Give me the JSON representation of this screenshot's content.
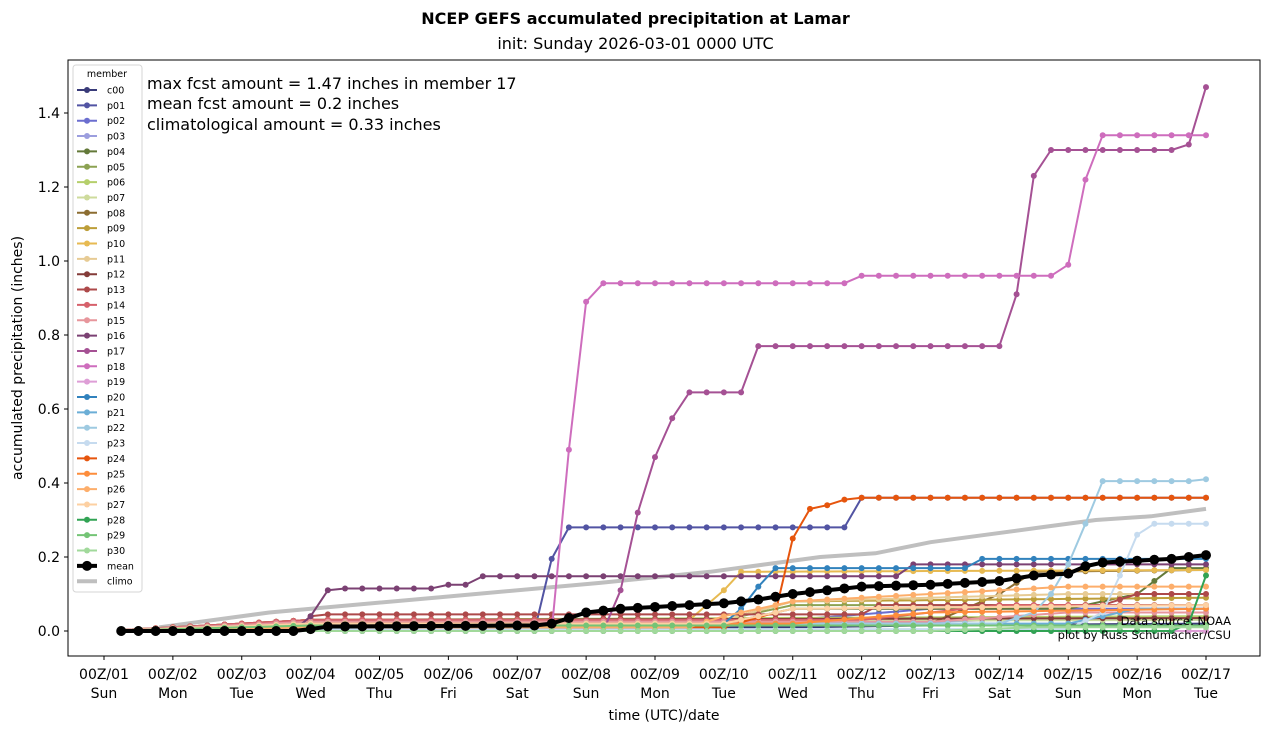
{
  "chart_data": {
    "type": "line",
    "title": "NCEP GEFS accumulated precipitation at Lamar",
    "subtitle": "init: Sunday 2026-03-01 0000 UTC",
    "xlabel": "time (UTC)/date",
    "ylabel": "accumulated precipitation (inches)",
    "ylim": [
      -0.065,
      1.52
    ],
    "xlim_hours": [
      -18,
      402
    ],
    "y_ticks": [
      "0.0",
      "0.2",
      "0.4",
      "0.6",
      "0.8",
      "1.0",
      "1.2",
      "1.4"
    ],
    "y_tick_values": [
      0,
      0.2,
      0.4,
      0.6,
      0.8,
      1.0,
      1.2,
      1.4
    ],
    "x_ticks": [
      {
        "hour": 0,
        "label1": "00Z/01",
        "label2": "Sun"
      },
      {
        "hour": 24,
        "label1": "00Z/02",
        "label2": "Mon"
      },
      {
        "hour": 48,
        "label1": "00Z/03",
        "label2": "Tue"
      },
      {
        "hour": 72,
        "label1": "00Z/04",
        "label2": "Wed"
      },
      {
        "hour": 96,
        "label1": "00Z/05",
        "label2": "Thu"
      },
      {
        "hour": 120,
        "label1": "00Z/06",
        "label2": "Fri"
      },
      {
        "hour": 144,
        "label1": "00Z/07",
        "label2": "Sat"
      },
      {
        "hour": 168,
        "label1": "00Z/08",
        "label2": "Sun"
      },
      {
        "hour": 192,
        "label1": "00Z/09",
        "label2": "Mon"
      },
      {
        "hour": 216,
        "label1": "00Z/10",
        "label2": "Tue"
      },
      {
        "hour": 240,
        "label1": "00Z/11",
        "label2": "Wed"
      },
      {
        "hour": 264,
        "label1": "00Z/12",
        "label2": "Thu"
      },
      {
        "hour": 288,
        "label1": "00Z/13",
        "label2": "Fri"
      },
      {
        "hour": 312,
        "label1": "00Z/14",
        "label2": "Sat"
      },
      {
        "hour": 336,
        "label1": "00Z/15",
        "label2": "Sun"
      },
      {
        "hour": 360,
        "label1": "00Z/16",
        "label2": "Mon"
      },
      {
        "hour": 384,
        "label1": "00Z/17",
        "label2": "Tue"
      }
    ],
    "time_step_hours": 6,
    "series_start_hour": 6,
    "annotations": [
      "max fcst amount = 1.47 inches in member 17",
      "mean fcst amount = 0.2 inches",
      "climatological amount = 0.33 inches"
    ],
    "credits": [
      "Data source: NOAA",
      "plot by Russ Schumacher/CSU"
    ],
    "legend": {
      "title": "member",
      "placement": "upper-left"
    },
    "series": [
      {
        "name": "c00",
        "color": "#393b79",
        "steps": [
          [
            0,
            0
          ],
          [
            12,
            0.005
          ],
          [
            40,
            0.01
          ],
          [
            48,
            0.015
          ],
          [
            64,
            0.02
          ]
        ]
      },
      {
        "name": "p01",
        "color": "#5254a3",
        "steps": [
          [
            0,
            0
          ],
          [
            25,
            0
          ],
          [
            26,
            0.195
          ],
          [
            27,
            0.28
          ],
          [
            43,
            0.28
          ],
          [
            44,
            0.36
          ],
          [
            64,
            0.36
          ]
        ]
      },
      {
        "name": "p02",
        "color": "#6b6ecf",
        "steps": [
          [
            0,
            0
          ],
          [
            12,
            0.03
          ],
          [
            40,
            0.03
          ],
          [
            48,
            0.06
          ],
          [
            64,
            0.06
          ]
        ]
      },
      {
        "name": "p03",
        "color": "#9c9ede",
        "steps": [
          [
            0,
            0
          ],
          [
            12,
            0.02
          ],
          [
            44,
            0.02
          ],
          [
            52,
            0.03
          ],
          [
            64,
            0.03
          ]
        ]
      },
      {
        "name": "p04",
        "color": "#637939",
        "steps": [
          [
            0,
            0
          ],
          [
            12,
            0.02
          ],
          [
            36,
            0.02
          ],
          [
            40,
            0.06
          ],
          [
            56,
            0.06
          ],
          [
            60,
            0.1
          ],
          [
            62,
            0.17
          ],
          [
            64,
            0.17
          ]
        ]
      },
      {
        "name": "p05",
        "color": "#8ca252",
        "steps": [
          [
            0,
            0
          ],
          [
            12,
            0.03
          ],
          [
            36,
            0.03
          ],
          [
            40,
            0.07
          ],
          [
            64,
            0.07
          ]
        ]
      },
      {
        "name": "p06",
        "color": "#b5cf6b",
        "steps": [
          [
            0,
            0
          ],
          [
            12,
            0.03
          ],
          [
            64,
            0.04
          ]
        ]
      },
      {
        "name": "p07",
        "color": "#cedb9c",
        "steps": [
          [
            0,
            0
          ],
          [
            12,
            0.025
          ],
          [
            64,
            0.03
          ]
        ]
      },
      {
        "name": "p08",
        "color": "#8c6d31",
        "steps": [
          [
            0,
            0
          ],
          [
            12,
            0.02
          ],
          [
            48,
            0.02
          ],
          [
            52,
            0.1
          ],
          [
            54,
            0.16
          ],
          [
            64,
            0.165
          ]
        ]
      },
      {
        "name": "p09",
        "color": "#bd9e39",
        "steps": [
          [
            0,
            0
          ],
          [
            12,
            0.03
          ],
          [
            36,
            0.03
          ],
          [
            40,
            0.08
          ],
          [
            64,
            0.09
          ]
        ]
      },
      {
        "name": "p10",
        "color": "#e7ba52",
        "steps": [
          [
            0,
            0
          ],
          [
            12,
            0.03
          ],
          [
            34,
            0.03
          ],
          [
            36,
            0.11
          ],
          [
            37,
            0.16
          ],
          [
            64,
            0.165
          ]
        ]
      },
      {
        "name": "p11",
        "color": "#e7cb94",
        "steps": [
          [
            0,
            0
          ],
          [
            12,
            0.03
          ],
          [
            36,
            0.03
          ],
          [
            40,
            0.08
          ],
          [
            48,
            0.09
          ],
          [
            56,
            0.1
          ],
          [
            64,
            0.1
          ]
        ]
      },
      {
        "name": "p12",
        "color": "#843c39",
        "steps": [
          [
            0,
            0
          ],
          [
            12,
            0.03
          ],
          [
            64,
            0.035
          ]
        ]
      },
      {
        "name": "p13",
        "color": "#ad494a",
        "steps": [
          [
            0,
            0
          ],
          [
            11,
            0
          ],
          [
            12,
            0.04
          ],
          [
            13,
            0.045
          ],
          [
            44,
            0.045
          ],
          [
            45,
            0.07
          ],
          [
            58,
            0.07
          ],
          [
            60,
            0.1
          ],
          [
            64,
            0.1
          ]
        ]
      },
      {
        "name": "p14",
        "color": "#d6616b",
        "steps": [
          [
            0,
            0
          ],
          [
            12,
            0.03
          ],
          [
            44,
            0.03
          ],
          [
            52,
            0.07
          ],
          [
            64,
            0.07
          ]
        ]
      },
      {
        "name": "p15",
        "color": "#e7969c",
        "steps": [
          [
            0,
            0
          ],
          [
            12,
            0.025
          ],
          [
            48,
            0.025
          ],
          [
            56,
            0.05
          ],
          [
            64,
            0.05
          ]
        ]
      },
      {
        "name": "p16",
        "color": "#7b4173",
        "steps": [
          [
            0,
            0
          ],
          [
            11,
            0
          ],
          [
            12,
            0.04
          ],
          [
            13,
            0.11
          ],
          [
            14,
            0.115
          ],
          [
            19,
            0.115
          ],
          [
            20,
            0.125
          ],
          [
            21,
            0.125
          ],
          [
            22,
            0.148
          ],
          [
            46,
            0.148
          ],
          [
            47,
            0.18
          ],
          [
            64,
            0.18
          ]
        ]
      },
      {
        "name": "p17",
        "color": "#a55194",
        "steps": [
          [
            0,
            0
          ],
          [
            29,
            0
          ],
          [
            30,
            0.11
          ],
          [
            31,
            0.32
          ],
          [
            32,
            0.47
          ],
          [
            33,
            0.575
          ],
          [
            34,
            0.645
          ],
          [
            37,
            0.645
          ],
          [
            38,
            0.77
          ],
          [
            52,
            0.77
          ],
          [
            53,
            0.91
          ],
          [
            54,
            1.23
          ],
          [
            55,
            1.3
          ],
          [
            62,
            1.3
          ],
          [
            63,
            1.315
          ],
          [
            64,
            1.47
          ]
        ]
      },
      {
        "name": "p18",
        "color": "#ce6dbd",
        "steps": [
          [
            0,
            0
          ],
          [
            26,
            0
          ],
          [
            27,
            0.49
          ],
          [
            28,
            0.89
          ],
          [
            29,
            0.94
          ],
          [
            43,
            0.94
          ],
          [
            44,
            0.96
          ],
          [
            55,
            0.96
          ],
          [
            56,
            0.99
          ],
          [
            57,
            1.22
          ],
          [
            58,
            1.34
          ],
          [
            64,
            1.34
          ]
        ]
      },
      {
        "name": "p19",
        "color": "#de9ed6",
        "steps": [
          [
            0,
            0
          ],
          [
            64,
            0.0
          ]
        ]
      },
      {
        "name": "p20",
        "color": "#3182bd",
        "steps": [
          [
            0,
            0
          ],
          [
            12,
            0.02
          ],
          [
            36,
            0.02
          ],
          [
            37,
            0.06
          ],
          [
            38,
            0.12
          ],
          [
            39,
            0.17
          ],
          [
            50,
            0.17
          ],
          [
            51,
            0.195
          ],
          [
            64,
            0.195
          ]
        ]
      },
      {
        "name": "p21",
        "color": "#6baed6",
        "steps": [
          [
            0,
            0
          ],
          [
            12,
            0.02
          ],
          [
            56,
            0.02
          ],
          [
            60,
            0.06
          ],
          [
            64,
            0.06
          ]
        ]
      },
      {
        "name": "p22",
        "color": "#9ecae1",
        "steps": [
          [
            0,
            0
          ],
          [
            12,
            0.02
          ],
          [
            52,
            0.02
          ],
          [
            54,
            0.05
          ],
          [
            55,
            0.1
          ],
          [
            56,
            0.18
          ],
          [
            57,
            0.29
          ],
          [
            58,
            0.405
          ],
          [
            63,
            0.405
          ],
          [
            64,
            0.41
          ]
        ]
      },
      {
        "name": "p23",
        "color": "#c6dbef",
        "steps": [
          [
            0,
            0
          ],
          [
            12,
            0.005
          ],
          [
            56,
            0.005
          ],
          [
            58,
            0.05
          ],
          [
            59,
            0.15
          ],
          [
            60,
            0.26
          ],
          [
            61,
            0.29
          ],
          [
            64,
            0.29
          ]
        ]
      },
      {
        "name": "p24",
        "color": "#e6550d",
        "steps": [
          [
            0,
            0
          ],
          [
            12,
            0.01
          ],
          [
            36,
            0.01
          ],
          [
            39,
            0.05
          ],
          [
            40,
            0.25
          ],
          [
            41,
            0.33
          ],
          [
            42,
            0.34
          ],
          [
            43,
            0.355
          ],
          [
            44,
            0.36
          ],
          [
            64,
            0.36
          ]
        ]
      },
      {
        "name": "p25",
        "color": "#fd8d3c",
        "steps": [
          [
            0,
            0
          ],
          [
            12,
            0.02
          ],
          [
            40,
            0.02
          ],
          [
            48,
            0.05
          ],
          [
            64,
            0.06
          ]
        ]
      },
      {
        "name": "p26",
        "color": "#fdae6b",
        "steps": [
          [
            0,
            0
          ],
          [
            12,
            0.01
          ],
          [
            34,
            0.01
          ],
          [
            36,
            0.04
          ],
          [
            40,
            0.08
          ],
          [
            44,
            0.09
          ],
          [
            48,
            0.1
          ],
          [
            52,
            0.11
          ],
          [
            56,
            0.12
          ],
          [
            64,
            0.12
          ]
        ]
      },
      {
        "name": "p27",
        "color": "#fdd0a2",
        "steps": [
          [
            0,
            0
          ],
          [
            12,
            0.02
          ],
          [
            36,
            0.02
          ],
          [
            40,
            0.06
          ],
          [
            64,
            0.07
          ]
        ]
      },
      {
        "name": "p28",
        "color": "#31a354",
        "steps": [
          [
            0,
            0
          ],
          [
            12,
            0.0
          ],
          [
            62,
            0.0
          ],
          [
            63,
            0.02
          ],
          [
            64,
            0.15
          ]
        ]
      },
      {
        "name": "p29",
        "color": "#74c476",
        "steps": [
          [
            0,
            0
          ],
          [
            12,
            0.015
          ],
          [
            64,
            0.015
          ]
        ]
      },
      {
        "name": "p30",
        "color": "#a1d99b",
        "steps": [
          [
            0,
            0
          ],
          [
            12,
            0.0
          ],
          [
            48,
            0.0
          ],
          [
            54,
            0.01
          ],
          [
            64,
            0.01
          ]
        ]
      }
    ],
    "mean": {
      "name": "mean",
      "color": "#000000",
      "steps": [
        [
          0,
          0
        ],
        [
          11,
          0
        ],
        [
          12,
          0.005
        ],
        [
          13,
          0.012
        ],
        [
          25,
          0.015
        ],
        [
          26,
          0.02
        ],
        [
          27,
          0.035
        ],
        [
          28,
          0.05
        ],
        [
          30,
          0.06
        ],
        [
          32,
          0.065
        ],
        [
          34,
          0.07
        ],
        [
          36,
          0.075
        ],
        [
          38,
          0.085
        ],
        [
          40,
          0.1
        ],
        [
          42,
          0.11
        ],
        [
          44,
          0.12
        ],
        [
          48,
          0.125
        ],
        [
          50,
          0.13
        ],
        [
          52,
          0.135
        ],
        [
          54,
          0.15
        ],
        [
          56,
          0.155
        ],
        [
          57,
          0.175
        ],
        [
          58,
          0.185
        ],
        [
          60,
          0.19
        ],
        [
          62,
          0.195
        ],
        [
          64,
          0.205
        ]
      ]
    },
    "climo": {
      "name": "climo",
      "color": "#bfbfbf",
      "points": [
        [
          4,
          0.01
        ],
        [
          12,
          0.05
        ],
        [
          24,
          0.09
        ],
        [
          36,
          0.13
        ],
        [
          44,
          0.16
        ],
        [
          48,
          0.18
        ],
        [
          52,
          0.2
        ],
        [
          56,
          0.21
        ],
        [
          60,
          0.24
        ],
        [
          64,
          0.26
        ],
        [
          68,
          0.28
        ],
        [
          72,
          0.3
        ],
        [
          76,
          0.31
        ],
        [
          80,
          0.33
        ]
      ]
    }
  }
}
